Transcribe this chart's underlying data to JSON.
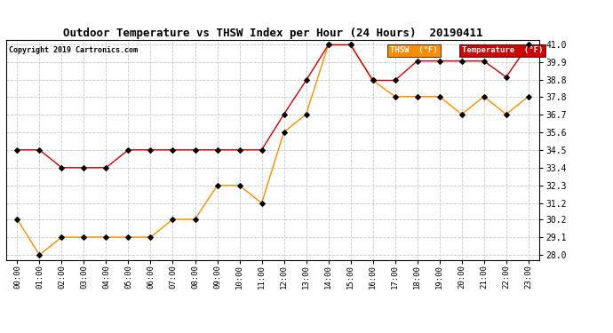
{
  "title": "Outdoor Temperature vs THSW Index per Hour (24 Hours)  20190411",
  "copyright": "Copyright 2019 Cartronics.com",
  "x_labels": [
    "00:00",
    "01:00",
    "02:00",
    "03:00",
    "04:00",
    "05:00",
    "06:00",
    "07:00",
    "08:00",
    "09:00",
    "10:00",
    "11:00",
    "12:00",
    "13:00",
    "14:00",
    "15:00",
    "16:00",
    "17:00",
    "18:00",
    "19:00",
    "20:00",
    "21:00",
    "22:00",
    "23:00"
  ],
  "temperature": [
    34.5,
    34.5,
    33.4,
    33.4,
    33.4,
    34.5,
    34.5,
    34.5,
    34.5,
    34.5,
    34.5,
    34.5,
    36.7,
    38.8,
    41.0,
    41.0,
    38.8,
    38.8,
    40.0,
    40.0,
    40.0,
    40.0,
    39.0,
    41.0
  ],
  "thsw": [
    30.2,
    28.0,
    29.1,
    29.1,
    29.1,
    29.1,
    29.1,
    30.2,
    30.2,
    32.3,
    32.3,
    31.2,
    35.6,
    36.7,
    41.0,
    41.0,
    38.8,
    37.8,
    37.8,
    37.8,
    36.7,
    37.8,
    36.7,
    37.8
  ],
  "temp_color": "#cc0000",
  "thsw_color": "#ff8c00",
  "marker_color": "#000000",
  "bg_color": "#ffffff",
  "grid_color": "#c8c8c8",
  "ylim_min": 27.7,
  "ylim_max": 41.3,
  "yticks": [
    28.0,
    29.1,
    30.2,
    31.2,
    32.3,
    33.4,
    34.5,
    35.6,
    36.7,
    37.8,
    38.8,
    39.9,
    41.0
  ],
  "legend_thsw_bg": "#ff8c00",
  "legend_temp_bg": "#cc0000",
  "legend_thsw_label": "THSW  (°F)",
  "legend_temp_label": "Temperature  (°F)"
}
